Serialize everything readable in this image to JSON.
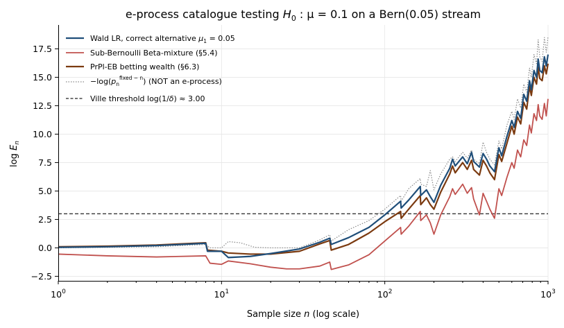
{
  "chart_data": {
    "type": "line",
    "title_pre": "e-process catalogue testing ",
    "title_math_H": "H",
    "title_math_sub": "0",
    "title_math_rest": " : μ = 0.1",
    "title_post": " on a Bern(0.05) stream",
    "xlabel_pre": "Sample size ",
    "xlabel_var": "n",
    "xlabel_post": " (log scale)",
    "ylabel_pre": "log ",
    "ylabel_var": "E",
    "ylabel_sub": "n",
    "x_scale": "log",
    "xlim": [
      1,
      1000
    ],
    "ylim": [
      -2.9,
      19.6
    ],
    "grid": true,
    "legend_position": "top-left",
    "x_ticks": [
      {
        "base": "10",
        "exp": "0",
        "value": 1
      },
      {
        "base": "10",
        "exp": "1",
        "value": 10
      },
      {
        "base": "10",
        "exp": "2",
        "value": 100
      },
      {
        "base": "10",
        "exp": "3",
        "value": 1000
      }
    ],
    "y_ticks": [
      "−2.5",
      "0.0",
      "2.5",
      "5.0",
      "7.5",
      "10.0",
      "12.5",
      "15.0",
      "17.5"
    ],
    "y_tick_values": [
      -2.5,
      0,
      2.5,
      5,
      7.5,
      10,
      12.5,
      15,
      17.5
    ],
    "threshold": {
      "value": 3.0,
      "color": "#222222",
      "dash": "dashed"
    },
    "series": [
      {
        "name": "Wald LR, correct alternative μ₁ = 0.05",
        "legend_pre": "Wald LR, correct alternative ",
        "legend_math": "μ",
        "legend_math_sub": "1",
        "legend_math_post": " = 0.05",
        "color": "#1f4e79",
        "width": 2.2,
        "dash": "solid",
        "points": [
          [
            1,
            0.05
          ],
          [
            2,
            0.1
          ],
          [
            4,
            0.2
          ],
          [
            8,
            0.4
          ],
          [
            8.2,
            -0.3
          ],
          [
            10,
            -0.3
          ],
          [
            11,
            -0.85
          ],
          [
            15,
            -0.75
          ],
          [
            20,
            -0.5
          ],
          [
            30,
            -0.1
          ],
          [
            40,
            0.5
          ],
          [
            46,
            0.85
          ],
          [
            47,
            0.3
          ],
          [
            60,
            0.9
          ],
          [
            80,
            1.8
          ],
          [
            100,
            2.9
          ],
          [
            125,
            4.1
          ],
          [
            126,
            3.5
          ],
          [
            140,
            4.2
          ],
          [
            165,
            5.4
          ],
          [
            166,
            4.6
          ],
          [
            180,
            5.1
          ],
          [
            190,
            4.5
          ],
          [
            200,
            4.0
          ],
          [
            220,
            5.5
          ],
          [
            250,
            7.0
          ],
          [
            260,
            7.8
          ],
          [
            270,
            7.2
          ],
          [
            300,
            8.0
          ],
          [
            320,
            7.4
          ],
          [
            340,
            8.4
          ],
          [
            350,
            7.6
          ],
          [
            380,
            7.1
          ],
          [
            400,
            8.3
          ],
          [
            420,
            7.8
          ],
          [
            440,
            7.2
          ],
          [
            470,
            6.7
          ],
          [
            500,
            8.8
          ],
          [
            520,
            8.1
          ],
          [
            560,
            9.8
          ],
          [
            600,
            11.2
          ],
          [
            620,
            10.6
          ],
          [
            650,
            12.0
          ],
          [
            680,
            11.4
          ],
          [
            710,
            13.5
          ],
          [
            740,
            12.9
          ],
          [
            770,
            14.7
          ],
          [
            790,
            13.9
          ],
          [
            820,
            15.6
          ],
          [
            850,
            15.0
          ],
          [
            870,
            16.6
          ],
          [
            890,
            15.6
          ],
          [
            920,
            15.4
          ],
          [
            950,
            16.8
          ],
          [
            975,
            16.0
          ],
          [
            1000,
            17.0
          ]
        ]
      },
      {
        "name": "Sub-Bernoulli Beta-mixture (§5.4)",
        "legend_pre": "Sub-Bernoulli Beta-mixture (§5.4)",
        "color": "#c0504d",
        "width": 1.8,
        "dash": "solid",
        "points": [
          [
            1,
            -0.55
          ],
          [
            2,
            -0.7
          ],
          [
            4,
            -0.8
          ],
          [
            8,
            -0.7
          ],
          [
            8.5,
            -1.35
          ],
          [
            10,
            -1.45
          ],
          [
            11,
            -1.15
          ],
          [
            15,
            -1.4
          ],
          [
            20,
            -1.7
          ],
          [
            25,
            -1.85
          ],
          [
            30,
            -1.85
          ],
          [
            40,
            -1.6
          ],
          [
            46,
            -1.25
          ],
          [
            47,
            -1.9
          ],
          [
            60,
            -1.5
          ],
          [
            80,
            -0.6
          ],
          [
            100,
            0.6
          ],
          [
            125,
            1.8
          ],
          [
            126,
            1.2
          ],
          [
            140,
            1.9
          ],
          [
            165,
            3.2
          ],
          [
            166,
            2.4
          ],
          [
            180,
            2.9
          ],
          [
            190,
            2.2
          ],
          [
            200,
            1.2
          ],
          [
            220,
            2.9
          ],
          [
            250,
            4.5
          ],
          [
            260,
            5.2
          ],
          [
            270,
            4.7
          ],
          [
            300,
            5.6
          ],
          [
            320,
            4.8
          ],
          [
            340,
            5.3
          ],
          [
            350,
            4.3
          ],
          [
            380,
            2.9
          ],
          [
            400,
            4.8
          ],
          [
            420,
            4.1
          ],
          [
            440,
            3.4
          ],
          [
            470,
            2.6
          ],
          [
            500,
            5.2
          ],
          [
            520,
            4.6
          ],
          [
            560,
            6.2
          ],
          [
            600,
            7.5
          ],
          [
            620,
            7.0
          ],
          [
            650,
            8.6
          ],
          [
            680,
            8.0
          ],
          [
            710,
            9.5
          ],
          [
            740,
            9.0
          ],
          [
            770,
            10.8
          ],
          [
            790,
            10.1
          ],
          [
            820,
            11.8
          ],
          [
            850,
            11.2
          ],
          [
            870,
            12.6
          ],
          [
            890,
            11.6
          ],
          [
            920,
            11.3
          ],
          [
            950,
            12.7
          ],
          [
            975,
            11.6
          ],
          [
            1000,
            13.1
          ]
        ]
      },
      {
        "name": "PrPl-EB betting wealth (§6.3)",
        "legend_pre": "PrPl-EB betting wealth (§6.3)",
        "color": "#7b3a10",
        "width": 2.2,
        "dash": "solid",
        "points": [
          [
            1,
            0.1
          ],
          [
            2,
            0.15
          ],
          [
            4,
            0.25
          ],
          [
            8,
            0.45
          ],
          [
            8.2,
            -0.2
          ],
          [
            10,
            -0.3
          ],
          [
            11,
            -0.45
          ],
          [
            15,
            -0.55
          ],
          [
            20,
            -0.55
          ],
          [
            30,
            -0.3
          ],
          [
            40,
            0.35
          ],
          [
            46,
            0.65
          ],
          [
            47,
            -0.2
          ],
          [
            60,
            0.3
          ],
          [
            80,
            1.3
          ],
          [
            100,
            2.3
          ],
          [
            125,
            3.2
          ],
          [
            126,
            2.6
          ],
          [
            140,
            3.4
          ],
          [
            165,
            4.6
          ],
          [
            166,
            3.8
          ],
          [
            180,
            4.4
          ],
          [
            190,
            3.8
          ],
          [
            200,
            3.4
          ],
          [
            220,
            4.9
          ],
          [
            250,
            6.5
          ],
          [
            260,
            7.2
          ],
          [
            270,
            6.6
          ],
          [
            300,
            7.5
          ],
          [
            320,
            6.9
          ],
          [
            340,
            7.7
          ],
          [
            350,
            6.9
          ],
          [
            380,
            6.4
          ],
          [
            400,
            7.7
          ],
          [
            420,
            7.2
          ],
          [
            440,
            6.6
          ],
          [
            470,
            6.0
          ],
          [
            500,
            8.2
          ],
          [
            520,
            7.6
          ],
          [
            560,
            9.2
          ],
          [
            600,
            10.7
          ],
          [
            620,
            10.0
          ],
          [
            650,
            11.5
          ],
          [
            680,
            10.9
          ],
          [
            710,
            12.8
          ],
          [
            740,
            12.2
          ],
          [
            770,
            14.2
          ],
          [
            790,
            13.4
          ],
          [
            820,
            15.0
          ],
          [
            850,
            14.4
          ],
          [
            870,
            15.9
          ],
          [
            890,
            14.9
          ],
          [
            920,
            14.7
          ],
          [
            950,
            16.0
          ],
          [
            975,
            15.3
          ],
          [
            1000,
            16.2
          ]
        ]
      },
      {
        "name": "−log(p_n^{fixed−n}) (NOT an e-process)",
        "legend_pre": "−log(",
        "legend_math": "p",
        "legend_math_sub": "n",
        "legend_math_sup": "fixed − n",
        "legend_math_post": ")  (NOT an e-process)",
        "color": "#888888",
        "width": 1.2,
        "dash": "dotted",
        "points": [
          [
            1,
            0.0
          ],
          [
            2,
            0.05
          ],
          [
            4,
            0.1
          ],
          [
            8,
            0.3
          ],
          [
            8.5,
            0.0
          ],
          [
            10,
            0.0
          ],
          [
            11,
            0.55
          ],
          [
            13,
            0.45
          ],
          [
            16,
            0.05
          ],
          [
            20,
            0.0
          ],
          [
            30,
            0.0
          ],
          [
            40,
            0.7
          ],
          [
            46,
            1.15
          ],
          [
            47,
            0.6
          ],
          [
            60,
            1.6
          ],
          [
            80,
            2.4
          ],
          [
            100,
            3.4
          ],
          [
            125,
            4.6
          ],
          [
            126,
            4.1
          ],
          [
            140,
            5.2
          ],
          [
            165,
            6.1
          ],
          [
            166,
            5.6
          ],
          [
            180,
            5.4
          ],
          [
            190,
            6.8
          ],
          [
            200,
            5.1
          ],
          [
            220,
            6.5
          ],
          [
            250,
            7.8
          ],
          [
            260,
            8.0
          ],
          [
            270,
            7.6
          ],
          [
            300,
            8.4
          ],
          [
            320,
            7.9
          ],
          [
            340,
            8.6
          ],
          [
            350,
            7.8
          ],
          [
            380,
            7.4
          ],
          [
            400,
            9.3
          ],
          [
            420,
            8.4
          ],
          [
            440,
            7.8
          ],
          [
            470,
            7.3
          ],
          [
            500,
            9.4
          ],
          [
            520,
            8.7
          ],
          [
            560,
            10.8
          ],
          [
            600,
            12.0
          ],
          [
            620,
            11.3
          ],
          [
            650,
            13.1
          ],
          [
            680,
            12.3
          ],
          [
            710,
            14.4
          ],
          [
            740,
            13.7
          ],
          [
            770,
            15.8
          ],
          [
            790,
            15.0
          ],
          [
            820,
            17.0
          ],
          [
            850,
            16.2
          ],
          [
            870,
            18.3
          ],
          [
            890,
            16.8
          ],
          [
            920,
            16.4
          ],
          [
            950,
            18.5
          ],
          [
            975,
            17.2
          ],
          [
            1000,
            18.6
          ]
        ]
      }
    ],
    "threshold_legend_pre": "Ville threshold log(1/",
    "threshold_legend_math": "δ",
    "threshold_legend_post": ") ≈ 3.00"
  }
}
